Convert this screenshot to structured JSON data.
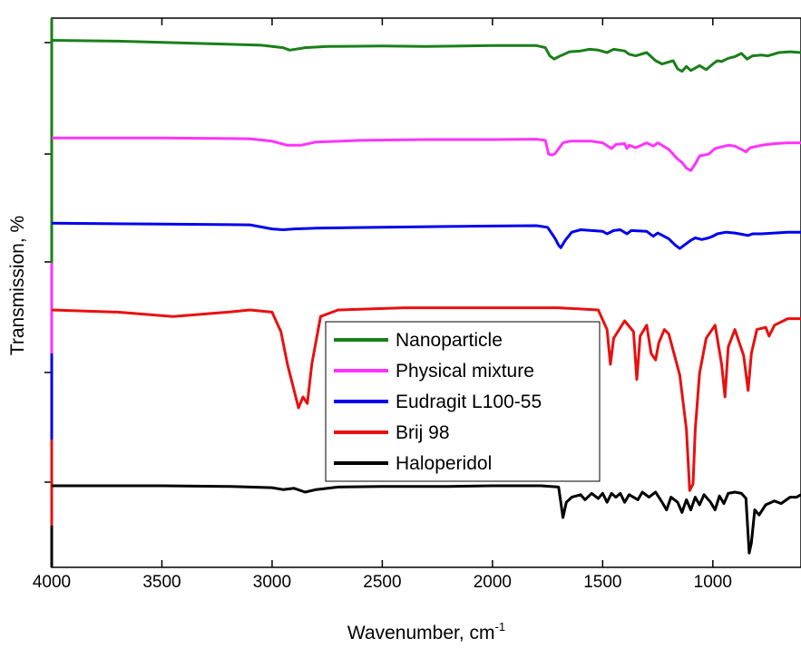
{
  "chart_data": {
    "type": "line",
    "title": "",
    "xlabel": "Wavenumber, cm",
    "xlabel_sup": "-1",
    "ylabel": "Transmission, %",
    "xlim": [
      4000,
      600
    ],
    "x_reversed": true,
    "x_ticks": [
      4000,
      3500,
      3000,
      2500,
      2000,
      1500,
      1000
    ],
    "legend_position": "center",
    "grid": false,
    "series": [
      {
        "name": "Nanoparticle",
        "color": "#1a7f1a",
        "points": [
          [
            4000,
            0.95
          ],
          [
            3700,
            0.94
          ],
          [
            3300,
            0.91
          ],
          [
            3050,
            0.89
          ],
          [
            2950,
            0.86
          ],
          [
            2920,
            0.83
          ],
          [
            2850,
            0.86
          ],
          [
            2750,
            0.875
          ],
          [
            2500,
            0.88
          ],
          [
            2300,
            0.875
          ],
          [
            2000,
            0.885
          ],
          [
            1800,
            0.885
          ],
          [
            1760,
            0.86
          ],
          [
            1740,
            0.76
          ],
          [
            1720,
            0.72
          ],
          [
            1700,
            0.75
          ],
          [
            1650,
            0.81
          ],
          [
            1600,
            0.82
          ],
          [
            1560,
            0.84
          ],
          [
            1520,
            0.83
          ],
          [
            1480,
            0.8
          ],
          [
            1450,
            0.84
          ],
          [
            1400,
            0.82
          ],
          [
            1380,
            0.78
          ],
          [
            1350,
            0.76
          ],
          [
            1300,
            0.8
          ],
          [
            1260,
            0.7
          ],
          [
            1230,
            0.66
          ],
          [
            1180,
            0.7
          ],
          [
            1160,
            0.6
          ],
          [
            1140,
            0.57
          ],
          [
            1120,
            0.63
          ],
          [
            1100,
            0.58
          ],
          [
            1060,
            0.64
          ],
          [
            1030,
            0.59
          ],
          [
            1000,
            0.66
          ],
          [
            980,
            0.7
          ],
          [
            960,
            0.69
          ],
          [
            930,
            0.73
          ],
          [
            900,
            0.75
          ],
          [
            870,
            0.79
          ],
          [
            845,
            0.72
          ],
          [
            820,
            0.76
          ],
          [
            780,
            0.77
          ],
          [
            750,
            0.76
          ],
          [
            700,
            0.8
          ],
          [
            650,
            0.81
          ],
          [
            600,
            0.8
          ]
        ]
      },
      {
        "name": "Physical mixture",
        "color": "#ff33ff",
        "points": [
          [
            4000,
            0.92
          ],
          [
            3500,
            0.92
          ],
          [
            3100,
            0.91
          ],
          [
            3000,
            0.88
          ],
          [
            2930,
            0.83
          ],
          [
            2870,
            0.83
          ],
          [
            2800,
            0.87
          ],
          [
            2600,
            0.89
          ],
          [
            2300,
            0.9
          ],
          [
            2000,
            0.9
          ],
          [
            1800,
            0.905
          ],
          [
            1760,
            0.89
          ],
          [
            1745,
            0.72
          ],
          [
            1730,
            0.71
          ],
          [
            1715,
            0.73
          ],
          [
            1680,
            0.86
          ],
          [
            1650,
            0.88
          ],
          [
            1550,
            0.88
          ],
          [
            1500,
            0.86
          ],
          [
            1460,
            0.79
          ],
          [
            1440,
            0.84
          ],
          [
            1400,
            0.85
          ],
          [
            1390,
            0.79
          ],
          [
            1380,
            0.83
          ],
          [
            1350,
            0.8
          ],
          [
            1300,
            0.86
          ],
          [
            1270,
            0.82
          ],
          [
            1250,
            0.86
          ],
          [
            1200,
            0.78
          ],
          [
            1160,
            0.66
          ],
          [
            1140,
            0.62
          ],
          [
            1120,
            0.55
          ],
          [
            1100,
            0.52
          ],
          [
            1080,
            0.6
          ],
          [
            1060,
            0.7
          ],
          [
            1020,
            0.72
          ],
          [
            990,
            0.79
          ],
          [
            960,
            0.81
          ],
          [
            930,
            0.83
          ],
          [
            900,
            0.82
          ],
          [
            870,
            0.78
          ],
          [
            850,
            0.75
          ],
          [
            830,
            0.8
          ],
          [
            780,
            0.83
          ],
          [
            720,
            0.85
          ],
          [
            660,
            0.86
          ],
          [
            600,
            0.86
          ]
        ]
      },
      {
        "name": "Eudragit L100-55",
        "color": "#0000ee",
        "points": [
          [
            4000,
            0.93
          ],
          [
            3500,
            0.92
          ],
          [
            3100,
            0.91
          ],
          [
            3000,
            0.86
          ],
          [
            2950,
            0.85
          ],
          [
            2900,
            0.86
          ],
          [
            2800,
            0.87
          ],
          [
            2500,
            0.88
          ],
          [
            2200,
            0.89
          ],
          [
            2000,
            0.895
          ],
          [
            1800,
            0.9
          ],
          [
            1750,
            0.88
          ],
          [
            1730,
            0.8
          ],
          [
            1715,
            0.74
          ],
          [
            1700,
            0.66
          ],
          [
            1690,
            0.63
          ],
          [
            1670,
            0.72
          ],
          [
            1640,
            0.82
          ],
          [
            1600,
            0.85
          ],
          [
            1550,
            0.84
          ],
          [
            1500,
            0.83
          ],
          [
            1480,
            0.8
          ],
          [
            1450,
            0.84
          ],
          [
            1420,
            0.85
          ],
          [
            1390,
            0.8
          ],
          [
            1370,
            0.84
          ],
          [
            1300,
            0.83
          ],
          [
            1270,
            0.77
          ],
          [
            1250,
            0.81
          ],
          [
            1200,
            0.74
          ],
          [
            1170,
            0.66
          ],
          [
            1150,
            0.62
          ],
          [
            1130,
            0.66
          ],
          [
            1100,
            0.72
          ],
          [
            1080,
            0.75
          ],
          [
            1050,
            0.73
          ],
          [
            1020,
            0.75
          ],
          [
            1000,
            0.77
          ],
          [
            980,
            0.8
          ],
          [
            940,
            0.82
          ],
          [
            900,
            0.81
          ],
          [
            860,
            0.79
          ],
          [
            840,
            0.78
          ],
          [
            820,
            0.8
          ],
          [
            780,
            0.8
          ],
          [
            720,
            0.81
          ],
          [
            660,
            0.82
          ],
          [
            600,
            0.82
          ]
        ]
      },
      {
        "name": "Brij 98",
        "color": "#e81010",
        "points": [
          [
            4000,
            0.95
          ],
          [
            3700,
            0.94
          ],
          [
            3450,
            0.92
          ],
          [
            3200,
            0.94
          ],
          [
            3100,
            0.95
          ],
          [
            3000,
            0.94
          ],
          [
            2960,
            0.85
          ],
          [
            2930,
            0.7
          ],
          [
            2900,
            0.58
          ],
          [
            2880,
            0.5
          ],
          [
            2860,
            0.55
          ],
          [
            2840,
            0.52
          ],
          [
            2820,
            0.7
          ],
          [
            2780,
            0.92
          ],
          [
            2700,
            0.95
          ],
          [
            2400,
            0.96
          ],
          [
            2000,
            0.96
          ],
          [
            1700,
            0.96
          ],
          [
            1520,
            0.95
          ],
          [
            1480,
            0.86
          ],
          [
            1465,
            0.7
          ],
          [
            1450,
            0.82
          ],
          [
            1400,
            0.9
          ],
          [
            1360,
            0.85
          ],
          [
            1345,
            0.63
          ],
          [
            1330,
            0.83
          ],
          [
            1300,
            0.88
          ],
          [
            1280,
            0.75
          ],
          [
            1260,
            0.72
          ],
          [
            1245,
            0.8
          ],
          [
            1220,
            0.86
          ],
          [
            1200,
            0.84
          ],
          [
            1150,
            0.65
          ],
          [
            1120,
            0.4
          ],
          [
            1105,
            0.12
          ],
          [
            1090,
            0.15
          ],
          [
            1080,
            0.4
          ],
          [
            1060,
            0.66
          ],
          [
            1030,
            0.82
          ],
          [
            990,
            0.88
          ],
          [
            960,
            0.7
          ],
          [
            945,
            0.55
          ],
          [
            930,
            0.78
          ],
          [
            900,
            0.86
          ],
          [
            860,
            0.74
          ],
          [
            840,
            0.58
          ],
          [
            825,
            0.75
          ],
          [
            800,
            0.86
          ],
          [
            760,
            0.87
          ],
          [
            745,
            0.83
          ],
          [
            720,
            0.88
          ],
          [
            660,
            0.91
          ],
          [
            600,
            0.91
          ]
        ]
      },
      {
        "name": "Haloperidol",
        "color": "#000000",
        "points": [
          [
            4000,
            0.85
          ],
          [
            3500,
            0.85
          ],
          [
            3200,
            0.845
          ],
          [
            3100,
            0.84
          ],
          [
            3000,
            0.835
          ],
          [
            2950,
            0.82
          ],
          [
            2900,
            0.83
          ],
          [
            2850,
            0.8
          ],
          [
            2800,
            0.82
          ],
          [
            2700,
            0.84
          ],
          [
            2500,
            0.845
          ],
          [
            2200,
            0.845
          ],
          [
            2000,
            0.85
          ],
          [
            1780,
            0.85
          ],
          [
            1700,
            0.84
          ],
          [
            1690,
            0.72
          ],
          [
            1680,
            0.6
          ],
          [
            1665,
            0.72
          ],
          [
            1640,
            0.76
          ],
          [
            1600,
            0.78
          ],
          [
            1580,
            0.74
          ],
          [
            1550,
            0.79
          ],
          [
            1520,
            0.75
          ],
          [
            1500,
            0.79
          ],
          [
            1480,
            0.72
          ],
          [
            1460,
            0.79
          ],
          [
            1440,
            0.76
          ],
          [
            1420,
            0.79
          ],
          [
            1400,
            0.72
          ],
          [
            1380,
            0.78
          ],
          [
            1340,
            0.74
          ],
          [
            1320,
            0.8
          ],
          [
            1290,
            0.76
          ],
          [
            1260,
            0.8
          ],
          [
            1230,
            0.72
          ],
          [
            1210,
            0.66
          ],
          [
            1190,
            0.76
          ],
          [
            1160,
            0.72
          ],
          [
            1140,
            0.64
          ],
          [
            1120,
            0.74
          ],
          [
            1100,
            0.66
          ],
          [
            1080,
            0.76
          ],
          [
            1060,
            0.7
          ],
          [
            1040,
            0.78
          ],
          [
            1010,
            0.72
          ],
          [
            990,
            0.66
          ],
          [
            970,
            0.77
          ],
          [
            950,
            0.71
          ],
          [
            930,
            0.79
          ],
          [
            900,
            0.8
          ],
          [
            870,
            0.79
          ],
          [
            850,
            0.75
          ],
          [
            835,
            0.32
          ],
          [
            825,
            0.4
          ],
          [
            810,
            0.66
          ],
          [
            790,
            0.62
          ],
          [
            760,
            0.7
          ],
          [
            720,
            0.73
          ],
          [
            690,
            0.71
          ],
          [
            650,
            0.76
          ],
          [
            620,
            0.76
          ],
          [
            600,
            0.78
          ]
        ]
      }
    ]
  }
}
